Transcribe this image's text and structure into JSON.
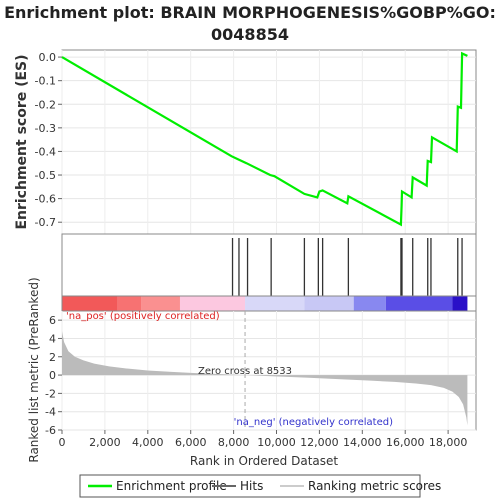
{
  "title_line1": "Enrichment plot: BRAIN MORPHOGENESIS%GOBP%GO:",
  "title_line2": "0048854",
  "chart_data": {
    "type": "line",
    "top_panel": {
      "ylabel": "Enrichment score (ES)",
      "ylim": [
        -0.75,
        0.03
      ],
      "yticks": [
        0.0,
        -0.1,
        -0.2,
        -0.3,
        -0.4,
        -0.5,
        -0.6,
        -0.7
      ],
      "ytick_labels": [
        "0.0",
        "-0.1",
        "-0.2",
        "-0.3",
        "-0.4",
        "-0.5",
        "-0.6",
        "-0.7"
      ],
      "series": [
        {
          "name": "Enrichment profile",
          "color": "#00ee00",
          "x": [
            0,
            7900,
            8250,
            8600,
            9700,
            9900,
            11300,
            11900,
            12000,
            12150,
            13300,
            13350,
            15800,
            15830,
            15850,
            16300,
            16350,
            17000,
            17050,
            17200,
            17250,
            18400,
            18450,
            18600,
            18650,
            18900
          ],
          "y": [
            0.0,
            -0.42,
            -0.435,
            -0.45,
            -0.5,
            -0.505,
            -0.58,
            -0.595,
            -0.57,
            -0.565,
            -0.62,
            -0.59,
            -0.71,
            -0.63,
            -0.57,
            -0.595,
            -0.51,
            -0.545,
            -0.44,
            -0.445,
            -0.34,
            -0.4,
            -0.21,
            -0.215,
            0.015,
            0.005
          ]
        }
      ],
      "grid": true
    },
    "hits": {
      "name": "Hits",
      "color": "#333333",
      "x": [
        7950,
        8250,
        8650,
        9750,
        11300,
        11950,
        12150,
        13350,
        15800,
        15850,
        16350,
        17050,
        17200,
        18450,
        18650
      ]
    },
    "rank_bar": {
      "segments": [
        {
          "from": 0,
          "to": 2600,
          "color": "#f25959"
        },
        {
          "from": 2600,
          "to": 3700,
          "color": "#f77272"
        },
        {
          "from": 3700,
          "to": 5500,
          "color": "#fa9090"
        },
        {
          "from": 5500,
          "to": 8533,
          "color": "#fcc8e0"
        },
        {
          "from": 8533,
          "to": 11300,
          "color": "#d8d8f8"
        },
        {
          "from": 11300,
          "to": 13600,
          "color": "#c8c8f5"
        },
        {
          "from": 13600,
          "to": 15100,
          "color": "#8888f0"
        },
        {
          "from": 15100,
          "to": 18200,
          "color": "#5a4ee6"
        },
        {
          "from": 18200,
          "to": 18900,
          "color": "#2a10c8"
        }
      ]
    },
    "bottom_panel": {
      "ylabel": "Ranked list metric (PreRanked)",
      "xlabel": "Rank in Ordered Dataset",
      "ylim": [
        -6,
        7
      ],
      "yticks": [
        6,
        4,
        2,
        0,
        -2,
        -4,
        -6
      ],
      "ytick_labels": [
        "6",
        "4",
        "2",
        "0",
        "-2",
        "-4",
        "-6"
      ],
      "xticks": [
        0,
        2000,
        4000,
        6000,
        8000,
        10000,
        12000,
        14000,
        16000,
        18000
      ],
      "xtick_labels": [
        "0",
        "2,000",
        "4,000",
        "6,000",
        "8,000",
        "10,000",
        "12,000",
        "14,000",
        "16,000",
        "18,000"
      ],
      "xlim": [
        0,
        19300
      ],
      "metric_curve": {
        "name": "Ranking metric scores",
        "color": "#bbbbbb",
        "x": [
          0,
          100,
          300,
          600,
          1000,
          1500,
          2200,
          3000,
          4000,
          5000,
          6000,
          7000,
          8000,
          8533,
          9500,
          10500,
          11500,
          12500,
          13500,
          14500,
          15500,
          16500,
          17200,
          17800,
          18200,
          18500,
          18700,
          18850,
          18900
        ],
        "y": [
          4.8,
          3.6,
          2.6,
          2.0,
          1.6,
          1.25,
          0.95,
          0.72,
          0.5,
          0.36,
          0.24,
          0.14,
          0.05,
          0.0,
          -0.1,
          -0.2,
          -0.3,
          -0.4,
          -0.5,
          -0.62,
          -0.75,
          -0.92,
          -1.1,
          -1.4,
          -1.8,
          -2.4,
          -3.2,
          -4.6,
          -5.5
        ]
      },
      "zero_cross": 8533,
      "annotations": {
        "zero_cross_label": "Zero cross at 8533",
        "pos_label": "'na_pos' (positively correlated)",
        "neg_label": "'na_neg' (negatively correlated)"
      }
    },
    "legend": {
      "placement": "bottom",
      "entries": [
        {
          "label": "Enrichment profile",
          "color": "#00ee00"
        },
        {
          "label": "Hits",
          "color": "#666666"
        },
        {
          "label": "Ranking metric scores",
          "color": "#cccccc"
        }
      ]
    }
  }
}
